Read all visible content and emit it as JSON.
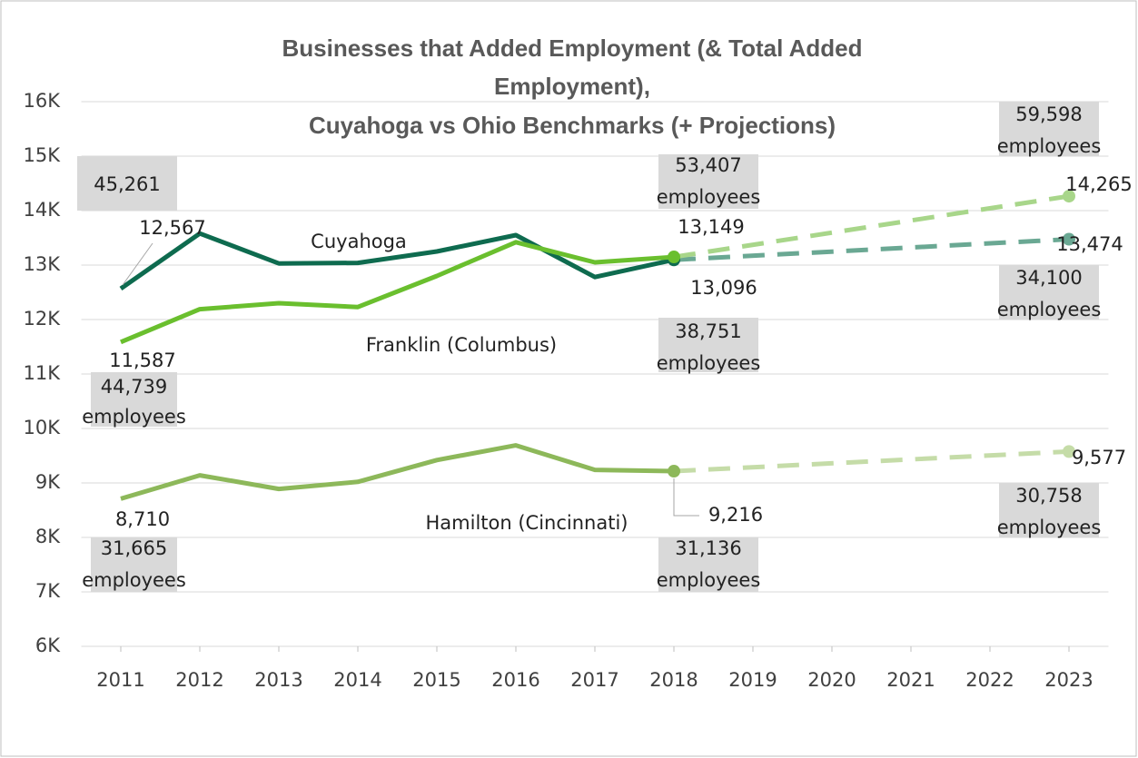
{
  "chart_data": {
    "type": "line",
    "title": [
      "Businesses that Added Employment (& Total Added",
      "Employment),",
      "Cuyahoga vs Ohio Benchmarks (+ Projections)"
    ],
    "xlim": [
      2010.5,
      2023.5
    ],
    "xticks": [
      2011,
      2012,
      2013,
      2014,
      2015,
      2016,
      2017,
      2018,
      2019,
      2020,
      2021,
      2022,
      2023
    ],
    "ylim": [
      6000,
      16000
    ],
    "yticks": [
      {
        "value": 6000,
        "label": "6K"
      },
      {
        "value": 7000,
        "label": "7K"
      },
      {
        "value": 8000,
        "label": "8K"
      },
      {
        "value": 9000,
        "label": "9K"
      },
      {
        "value": 10000,
        "label": "10K"
      },
      {
        "value": 11000,
        "label": "11K"
      },
      {
        "value": 12000,
        "label": "12K"
      },
      {
        "value": 13000,
        "label": "13K"
      },
      {
        "value": 14000,
        "label": "14K"
      },
      {
        "value": 15000,
        "label": "15K"
      },
      {
        "value": 16000,
        "label": "16K"
      }
    ],
    "grid": true,
    "series": [
      {
        "name": "Cuyahoga",
        "color": "#0e6b4f",
        "x": [
          2011,
          2012,
          2013,
          2014,
          2015,
          2016,
          2017,
          2018
        ],
        "values": [
          12567,
          13580,
          13030,
          13040,
          13250,
          13550,
          12780,
          13096
        ],
        "value_labels": [
          "12,567",
          null,
          null,
          null,
          null,
          null,
          null,
          "13,096"
        ],
        "projection": {
          "color": "#6aa893",
          "x": [
            2018,
            2023
          ],
          "values": [
            13096,
            13474
          ],
          "value_labels": [
            null,
            "13,474"
          ]
        }
      },
      {
        "name": "Franklin (Columbus)",
        "color": "#6abf2e",
        "x": [
          2011,
          2012,
          2013,
          2014,
          2015,
          2016,
          2017,
          2018
        ],
        "values": [
          11587,
          12190,
          12300,
          12230,
          12800,
          13420,
          13050,
          13149
        ],
        "value_labels": [
          "11,587",
          null,
          null,
          null,
          null,
          null,
          null,
          "13,149"
        ],
        "projection": {
          "color": "#a8d68a",
          "x": [
            2018,
            2023
          ],
          "values": [
            13149,
            14265
          ],
          "value_labels": [
            null,
            "14,265"
          ]
        }
      },
      {
        "name": "Hamilton (Cincinnati)",
        "color": "#8db85a",
        "x": [
          2011,
          2012,
          2013,
          2014,
          2015,
          2016,
          2017,
          2018
        ],
        "values": [
          8710,
          9140,
          8890,
          9020,
          9420,
          9690,
          9240,
          9216
        ],
        "value_labels": [
          "8,710",
          null,
          null,
          null,
          null,
          null,
          null,
          "9,216"
        ],
        "projection": {
          "color": "#c5dca8",
          "x": [
            2018,
            2023
          ],
          "values": [
            9216,
            9577
          ],
          "value_labels": [
            null,
            "9,577"
          ]
        }
      }
    ],
    "annotations": [
      {
        "x": 2011,
        "lines": [
          "45,261"
        ]
      },
      {
        "x": 2011,
        "lines": [
          "44,739",
          "employees"
        ]
      },
      {
        "x": 2011,
        "lines": [
          "31,665",
          "employees"
        ]
      },
      {
        "x": 2018,
        "lines": [
          "53,407",
          "employees"
        ]
      },
      {
        "x": 2018,
        "lines": [
          "38,751",
          "employees"
        ]
      },
      {
        "x": 2018,
        "lines": [
          "31,136",
          "employees"
        ]
      },
      {
        "x": 2023,
        "lines": [
          "59,598",
          "employees"
        ]
      },
      {
        "x": 2023,
        "lines": [
          "34,100",
          "employees"
        ]
      },
      {
        "x": 2023,
        "lines": [
          "30,758",
          "employees"
        ]
      }
    ]
  }
}
